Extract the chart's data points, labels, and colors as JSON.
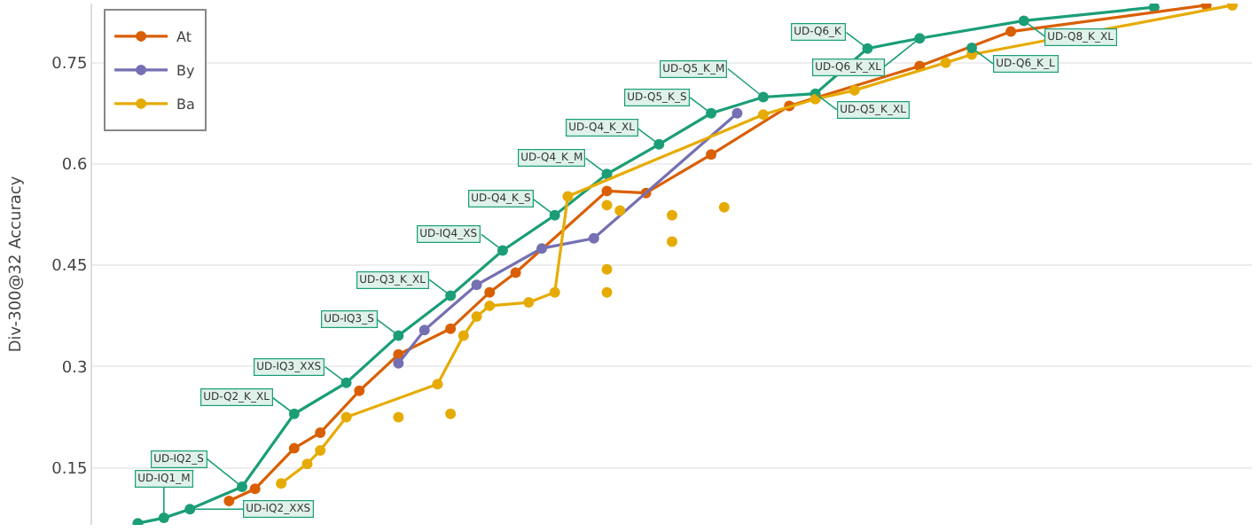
{
  "chart_data": {
    "type": "line",
    "ylabel": "Div-300@32 Accuracy",
    "categories": [
      null,
      null,
      null,
      null,
      null,
      null,
      null,
      null,
      null,
      null,
      null,
      null,
      null,
      null,
      null,
      null,
      null,
      null,
      null,
      null,
      null,
      null,
      null,
      null,
      null,
      null,
      null,
      null,
      null,
      null,
      null,
      null,
      null,
      null,
      null,
      null,
      null,
      null,
      null,
      null,
      null,
      null,
      null,
      null,
      null,
      null,
      null,
      null,
      null,
      null,
      null,
      null,
      null,
      null,
      null,
      null,
      null,
      null,
      null,
      null,
      null,
      null,
      null,
      null,
      null,
      null,
      null,
      null,
      null,
      null,
      null,
      null,
      null,
      null,
      null,
      null,
      null,
      null,
      null,
      null,
      null,
      null,
      null,
      null,
      null,
      null,
      null,
      null,
      null
    ],
    "ylim": [
      0.0656,
      0.8375
    ],
    "yticks": [
      0.15,
      0.3,
      0.45,
      0.6,
      0.75
    ],
    "tick_labels": "y",
    "grid": "y",
    "legend": "top left",
    "marker": "circle",
    "line_style": "solid",
    "series": [
      {
        "color": "#1b9e77",
        "values": [
          null,
          null,
          null,
          0.068,
          null,
          0.076,
          null,
          0.089,
          null,
          null,
          null,
          0.122,
          null,
          null,
          null,
          0.23,
          null,
          null,
          null,
          0.276,
          null,
          null,
          null,
          0.346,
          null,
          null,
          null,
          0.405,
          null,
          null,
          null,
          0.472,
          null,
          null,
          null,
          0.524,
          null,
          null,
          null,
          0.585,
          null,
          null,
          null,
          0.629,
          null,
          null,
          null,
          0.675,
          null,
          null,
          null,
          0.699,
          null,
          null,
          null,
          0.704,
          null,
          null,
          null,
          0.771,
          null,
          null,
          null,
          0.786,
          null,
          null,
          null,
          null,
          null,
          null,
          null,
          0.812,
          null,
          null,
          null,
          null,
          null,
          null,
          null,
          null,
          null,
          0.832,
          null,
          null,
          null,
          null,
          null,
          null,
          null
        ],
        "value_labels": [
          null,
          null,
          null,
          null,
          null,
          "UD-IQ1_M",
          null,
          "UD-IQ2_XXS",
          null,
          null,
          null,
          "UD-IQ2_S",
          null,
          null,
          null,
          "UD-Q2_K_XL",
          null,
          null,
          null,
          "UD-IQ3_XXS",
          null,
          null,
          null,
          "UD-IQ3_S",
          null,
          null,
          null,
          "UD-Q3_K_XL",
          null,
          null,
          null,
          "UD-IQ4_XS",
          null,
          null,
          null,
          "UD-Q4_K_S",
          null,
          null,
          null,
          "UD-Q4_K_M",
          null,
          null,
          null,
          "UD-Q4_K_XL",
          null,
          null,
          null,
          "UD-Q5_K_S",
          null,
          null,
          null,
          "UD-Q5_K_M",
          null,
          null,
          null,
          "UD-Q5_K_XL",
          null,
          null,
          null,
          "UD-Q6_K",
          null,
          null,
          null,
          "UD-Q6_K_XL",
          null,
          null,
          null,
          null,
          null,
          null,
          null,
          "UD-Q8_K_XL",
          null,
          null,
          null,
          null,
          null,
          null,
          null,
          null,
          null,
          null,
          null,
          null,
          null,
          null,
          null,
          null,
          null
        ]
      },
      {
        "type": "scatter",
        "color": "#1b9e77",
        "values": [
          null,
          null,
          null,
          null,
          null,
          null,
          null,
          null,
          null,
          null,
          null,
          null,
          null,
          null,
          null,
          null,
          null,
          null,
          null,
          null,
          null,
          null,
          null,
          null,
          null,
          null,
          null,
          null,
          null,
          null,
          null,
          null,
          null,
          null,
          null,
          null,
          null,
          null,
          null,
          null,
          null,
          null,
          null,
          null,
          null,
          null,
          null,
          null,
          null,
          null,
          null,
          null,
          null,
          null,
          null,
          null,
          null,
          null,
          null,
          null,
          null,
          null,
          null,
          null,
          null,
          null,
          null,
          0.772,
          null,
          null,
          null,
          null,
          null,
          null,
          null,
          null,
          null,
          null,
          null,
          null,
          null,
          null,
          null,
          null,
          null,
          null,
          null,
          null,
          null
        ],
        "value_labels": [
          null,
          null,
          null,
          null,
          null,
          null,
          null,
          null,
          null,
          null,
          null,
          null,
          null,
          null,
          null,
          null,
          null,
          null,
          null,
          null,
          null,
          null,
          null,
          null,
          null,
          null,
          null,
          null,
          null,
          null,
          null,
          null,
          null,
          null,
          null,
          null,
          null,
          null,
          null,
          null,
          null,
          null,
          null,
          null,
          null,
          null,
          null,
          null,
          null,
          null,
          null,
          null,
          null,
          null,
          null,
          null,
          null,
          null,
          null,
          null,
          null,
          null,
          null,
          null,
          null,
          null,
          null,
          "UD-Q6_K_L",
          null,
          null,
          null,
          null,
          null,
          null,
          null,
          null,
          null,
          null,
          null,
          null,
          null,
          null,
          null,
          null,
          null,
          null,
          null,
          null,
          null
        ]
      },
      {
        "name": "At",
        "color": "#d95f02",
        "values": [
          null,
          null,
          null,
          null,
          null,
          null,
          null,
          null,
          null,
          null,
          0.101,
          null,
          0.119,
          null,
          null,
          0.179,
          null,
          0.202,
          null,
          null,
          0.264,
          null,
          null,
          0.318,
          null,
          null,
          null,
          0.356,
          null,
          null,
          0.41,
          null,
          0.439,
          null,
          null,
          null,
          null,
          null,
          null,
          0.56,
          null,
          null,
          0.557,
          null,
          null,
          null,
          null,
          0.614,
          null,
          null,
          null,
          null,
          null,
          0.686,
          null,
          null,
          null,
          null,
          null,
          null,
          null,
          null,
          null,
          0.745,
          null,
          null,
          null,
          null,
          null,
          null,
          0.796,
          null,
          null,
          null,
          null,
          null,
          null,
          null,
          null,
          null,
          null,
          null,
          null,
          null,
          null,
          0.835,
          null,
          null,
          null
        ]
      },
      {
        "name": "By",
        "color": "#7570b3",
        "values": [
          null,
          null,
          null,
          null,
          null,
          null,
          null,
          null,
          null,
          null,
          null,
          null,
          null,
          null,
          null,
          null,
          null,
          null,
          null,
          null,
          null,
          null,
          null,
          0.305,
          null,
          0.354,
          null,
          null,
          null,
          0.421,
          null,
          null,
          null,
          null,
          0.475,
          null,
          null,
          null,
          0.49,
          null,
          null,
          null,
          null,
          null,
          null,
          null,
          null,
          null,
          null,
          0.675,
          null,
          null,
          null,
          null,
          null,
          null,
          null,
          null,
          null,
          null,
          null,
          null,
          null,
          null,
          null,
          null,
          null,
          null,
          null,
          null,
          null,
          null,
          null,
          null,
          null,
          null,
          null,
          null,
          null,
          null,
          null,
          null,
          null,
          null,
          null,
          null,
          null,
          null,
          null
        ]
      },
      {
        "name": "Ba",
        "color": "#e6ab02",
        "values": [
          null,
          null,
          null,
          null,
          null,
          null,
          null,
          null,
          null,
          null,
          null,
          null,
          null,
          null,
          0.127,
          null,
          0.156,
          0.176,
          null,
          0.225,
          null,
          null,
          null,
          null,
          null,
          null,
          0.274,
          null,
          0.346,
          0.374,
          0.39,
          null,
          null,
          0.395,
          null,
          0.41,
          0.552,
          null,
          null,
          null,
          null,
          null,
          null,
          null,
          null,
          null,
          null,
          null,
          null,
          null,
          null,
          0.673,
          null,
          null,
          null,
          0.696,
          null,
          null,
          0.709,
          null,
          null,
          null,
          null,
          null,
          null,
          0.75,
          null,
          0.762,
          null,
          null,
          null,
          null,
          null,
          null,
          null,
          null,
          null,
          null,
          null,
          null,
          null,
          null,
          null,
          null,
          null,
          null,
          null,
          0.835,
          null
        ]
      },
      {
        "type": "scatter",
        "color": "#e6ab02",
        "values": [
          null,
          null,
          null,
          null,
          null,
          null,
          null,
          null,
          null,
          null,
          null,
          null,
          null,
          null,
          null,
          null,
          null,
          null,
          null,
          null,
          null,
          null,
          null,
          0.225,
          null,
          null,
          null,
          0.23,
          null,
          null,
          null,
          null,
          null,
          null,
          null,
          null,
          null,
          null,
          null,
          0.444,
          0.531,
          null,
          null,
          null,
          0.524,
          null,
          null,
          null,
          0.536,
          null,
          null,
          null,
          null,
          null,
          null,
          null,
          null,
          null,
          null,
          null,
          null,
          null,
          null,
          null,
          null,
          null,
          null,
          null,
          null,
          null,
          null,
          null,
          null,
          null,
          null,
          null,
          null,
          null,
          null,
          null,
          null,
          null,
          null,
          null,
          null,
          null,
          null,
          null,
          null
        ]
      },
      {
        "type": "scatter",
        "color": "#e6ab02",
        "values": [
          null,
          null,
          null,
          null,
          null,
          null,
          null,
          null,
          null,
          null,
          null,
          null,
          null,
          null,
          null,
          null,
          null,
          null,
          null,
          null,
          null,
          null,
          null,
          null,
          null,
          null,
          null,
          null,
          null,
          null,
          null,
          null,
          null,
          null,
          null,
          null,
          null,
          null,
          null,
          0.41,
          null,
          null,
          null,
          null,
          0.485,
          null,
          null,
          null,
          null,
          null,
          null,
          null,
          null,
          null,
          null,
          null,
          null,
          null,
          null,
          null,
          null,
          null,
          null,
          null,
          null,
          null,
          null,
          null,
          null,
          null,
          null,
          null,
          null,
          null,
          null,
          null,
          null,
          null,
          null,
          null,
          null,
          null,
          null,
          null,
          null,
          null,
          null,
          null,
          null
        ]
      },
      {
        "type": "scatter",
        "color": "#e6ab02",
        "values": [
          null,
          null,
          null,
          null,
          null,
          null,
          null,
          null,
          null,
          null,
          null,
          null,
          null,
          null,
          null,
          null,
          null,
          null,
          null,
          null,
          null,
          null,
          null,
          null,
          null,
          null,
          null,
          null,
          null,
          null,
          null,
          null,
          null,
          null,
          null,
          null,
          null,
          null,
          null,
          0.539,
          null,
          null,
          null,
          null,
          null,
          null,
          null,
          null,
          null,
          null,
          null,
          null,
          null,
          null,
          null,
          null,
          null,
          null,
          null,
          null,
          null,
          null,
          null,
          null,
          null,
          null,
          null,
          null,
          null,
          null,
          null,
          null,
          null,
          null,
          null,
          null,
          null,
          null,
          null,
          null,
          null,
          null,
          null,
          null,
          null,
          null,
          null,
          null,
          null
        ]
      }
    ]
  }
}
